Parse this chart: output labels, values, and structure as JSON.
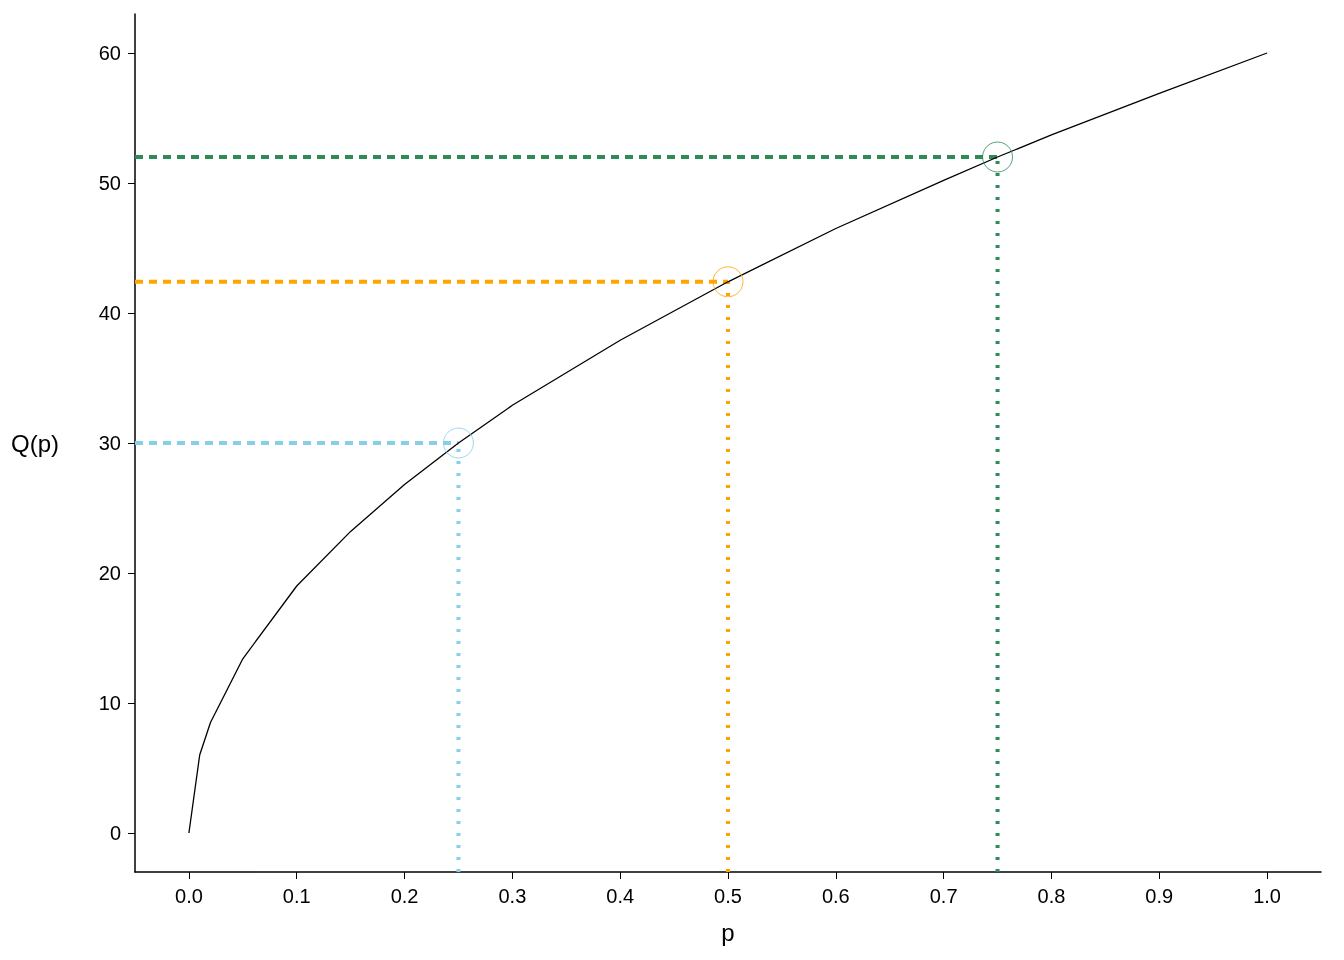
{
  "chart_data": {
    "type": "line",
    "xlabel": "p",
    "ylabel": "Q(p)",
    "xlim": [
      -0.05,
      1.05
    ],
    "ylim": [
      -3,
      63
    ],
    "xticks": [
      {
        "value": 0,
        "label": "0.0"
      },
      0.1,
      0.2,
      0.3,
      0.4,
      0.5,
      0.6,
      0.7,
      0.8,
      0.9,
      {
        "value": 1,
        "label": "1.0"
      }
    ],
    "yticks": [
      0,
      10,
      20,
      30,
      40,
      50,
      60
    ],
    "grid": false,
    "series": [
      {
        "color": "#000000",
        "line_style": "solid",
        "marker": "none",
        "x": [
          0,
          0.01,
          0.02,
          0.05,
          0.1,
          0.15,
          0.2,
          0.25,
          0.3,
          0.4,
          0.5,
          0.6,
          0.7,
          0.75,
          0.8,
          0.9,
          1
        ],
        "values": [
          0,
          6,
          8.5,
          13.4,
          19,
          23.2,
          26.8,
          30,
          32.9,
          37.9,
          42.4,
          46.5,
          50.2,
          52,
          53.7,
          56.9,
          60
        ]
      },
      {
        "color": "#87ceeb",
        "line_style": "dashed",
        "marker": "none",
        "x": [
          -0.05,
          0.25
        ],
        "values": [
          30,
          30
        ]
      },
      {
        "color": "#87ceeb",
        "line_style": "dotted",
        "marker": "none",
        "x": [
          0.25,
          0.25
        ],
        "values": [
          -3,
          30
        ]
      },
      {
        "color": "#ffa500",
        "line_style": "dashed",
        "marker": "none",
        "x": [
          -0.05,
          0.5
        ],
        "values": [
          42.4,
          42.4
        ]
      },
      {
        "color": "#ffa500",
        "line_style": "dotted",
        "marker": "none",
        "x": [
          0.5,
          0.5
        ],
        "values": [
          -3,
          42.4
        ]
      },
      {
        "color": "#2e8b57",
        "line_style": "dashed",
        "marker": "none",
        "x": [
          -0.05,
          0.75
        ],
        "values": [
          52,
          52
        ]
      },
      {
        "color": "#2e8b57",
        "line_style": "dotted",
        "marker": "none",
        "x": [
          0.75,
          0.75
        ],
        "values": [
          -3,
          52
        ]
      },
      {
        "type": "scatter",
        "colors": [
          "#87ceeb",
          "#ffa500",
          "#2e8b57"
        ],
        "marker": "circle",
        "x": [
          0.25,
          0.5,
          0.75
        ],
        "values": [
          30,
          42.4,
          52
        ]
      }
    ]
  }
}
